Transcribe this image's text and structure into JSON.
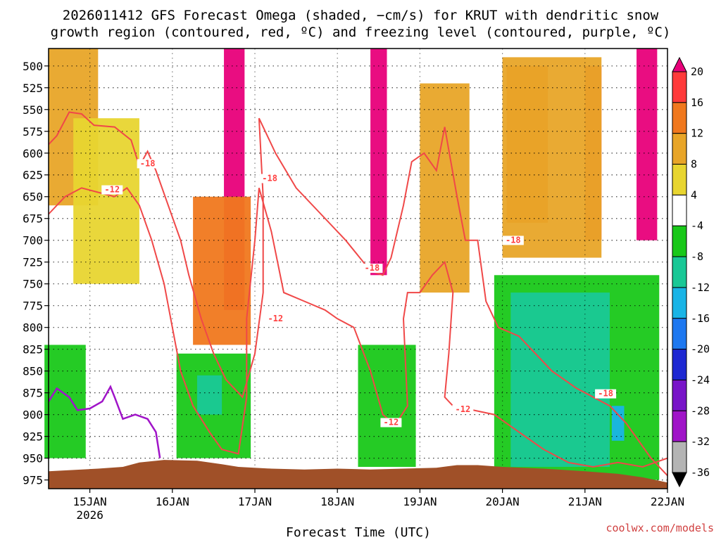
{
  "chart_data": {
    "type": "heatmap",
    "title_line1": "2026011412 GFS Forecast Omega (shaded, −cm/s) for KRUT with dendritic snow",
    "title_line2": "growth region (contoured, red, ºC) and freezing level (contoured, purple, ºC)",
    "xlabel": "Forecast Time (UTC)",
    "credit": "coolwx.com/models",
    "x_ticks": [
      {
        "label": "15JAN",
        "sublabel": "2026",
        "day": 1
      },
      {
        "label": "16JAN",
        "sublabel": "",
        "day": 2
      },
      {
        "label": "17JAN",
        "sublabel": "",
        "day": 3
      },
      {
        "label": "18JAN",
        "sublabel": "",
        "day": 4
      },
      {
        "label": "19JAN",
        "sublabel": "",
        "day": 5
      },
      {
        "label": "20JAN",
        "sublabel": "",
        "day": 6
      },
      {
        "label": "21JAN",
        "sublabel": "",
        "day": 7
      },
      {
        "label": "22JAN",
        "sublabel": "",
        "day": 8
      }
    ],
    "x_range_days": [
      0.5,
      8.0
    ],
    "y_ticks": [
      "500",
      "525",
      "550",
      "575",
      "600",
      "625",
      "650",
      "675",
      "700",
      "725",
      "750",
      "775",
      "800",
      "825",
      "850",
      "875",
      "900",
      "925",
      "950",
      "975"
    ],
    "y_range_hpa": [
      480,
      985
    ],
    "colorbar_ticks": [
      "20",
      "16",
      "12",
      "8",
      "4",
      "-4",
      "-8",
      "-12",
      "-16",
      "-20",
      "-24",
      "-28",
      "-32",
      "-36"
    ],
    "colorbar_colors": [
      "#e8007a",
      "#ff3a3a",
      "#f0781e",
      "#e8a528",
      "#e8d530",
      "#ffffff",
      "#19c819",
      "#19c896",
      "#19b4e6",
      "#1e78f0",
      "#1e28d2",
      "#7814c8",
      "#a014c8",
      "#b4b4b4",
      "#000000"
    ],
    "terrain_color": "#a05028",
    "contour_labels": [
      {
        "text": "-18",
        "day": 1.7,
        "hpa": 615
      },
      {
        "text": "-12",
        "day": 1.27,
        "hpa": 645
      },
      {
        "text": "-18",
        "day": 3.18,
        "hpa": 632
      },
      {
        "text": "-12",
        "day": 3.25,
        "hpa": 793
      },
      {
        "text": "-18",
        "day": 4.42,
        "hpa": 735
      },
      {
        "text": "-12",
        "day": 4.65,
        "hpa": 912
      },
      {
        "text": "-18",
        "day": 6.13,
        "hpa": 703
      },
      {
        "text": "-12",
        "day": 5.52,
        "hpa": 897
      },
      {
        "text": "-18",
        "day": 7.25,
        "hpa": 879
      }
    ],
    "omega_regions": [
      {
        "class": "pos",
        "level": "20",
        "day": 2.75,
        "top": 480,
        "bottom": 780,
        "width": 0.25
      },
      {
        "class": "pos",
        "level": "20",
        "day": 4.5,
        "top": 480,
        "bottom": 740,
        "width": 0.2
      },
      {
        "class": "pos",
        "level": "20",
        "day": 7.75,
        "top": 480,
        "bottom": 700,
        "width": 0.25
      },
      {
        "class": "pos",
        "level": "16",
        "day": 7.1,
        "top": 500,
        "bottom": 700,
        "width": 0.2
      },
      {
        "class": "pos",
        "level": "12",
        "day": 6.3,
        "top": 500,
        "bottom": 680,
        "width": 0.5
      },
      {
        "class": "pos",
        "level": "8",
        "day": 6.6,
        "top": 490,
        "bottom": 720,
        "width": 1.2
      },
      {
        "class": "pos",
        "level": "8",
        "day": 0.8,
        "top": 480,
        "bottom": 660,
        "width": 0.6
      },
      {
        "class": "pos",
        "level": "4",
        "day": 1.2,
        "top": 560,
        "bottom": 750,
        "width": 0.8
      },
      {
        "class": "pos",
        "level": "12",
        "day": 2.6,
        "top": 650,
        "bottom": 820,
        "width": 0.7
      },
      {
        "class": "pos",
        "level": "8",
        "day": 5.3,
        "top": 520,
        "bottom": 760,
        "width": 0.6
      },
      {
        "class": "neg",
        "level": "-8",
        "day": 2.5,
        "top": 830,
        "bottom": 950,
        "width": 0.9
      },
      {
        "class": "neg",
        "level": "-12",
        "day": 2.45,
        "top": 855,
        "bottom": 900,
        "width": 0.3
      },
      {
        "class": "neg",
        "level": "-8",
        "day": 4.6,
        "top": 820,
        "bottom": 960,
        "width": 0.7
      },
      {
        "class": "neg",
        "level": "-8",
        "day": 6.9,
        "top": 740,
        "bottom": 975,
        "width": 2.0
      },
      {
        "class": "neg",
        "level": "-12",
        "day": 6.7,
        "top": 760,
        "bottom": 960,
        "width": 1.2
      },
      {
        "class": "neg",
        "level": "-16",
        "day": 7.4,
        "top": 890,
        "bottom": 930,
        "width": 0.15
      },
      {
        "class": "neg",
        "level": "-8",
        "day": 0.7,
        "top": 820,
        "bottom": 950,
        "width": 0.5
      }
    ]
  }
}
